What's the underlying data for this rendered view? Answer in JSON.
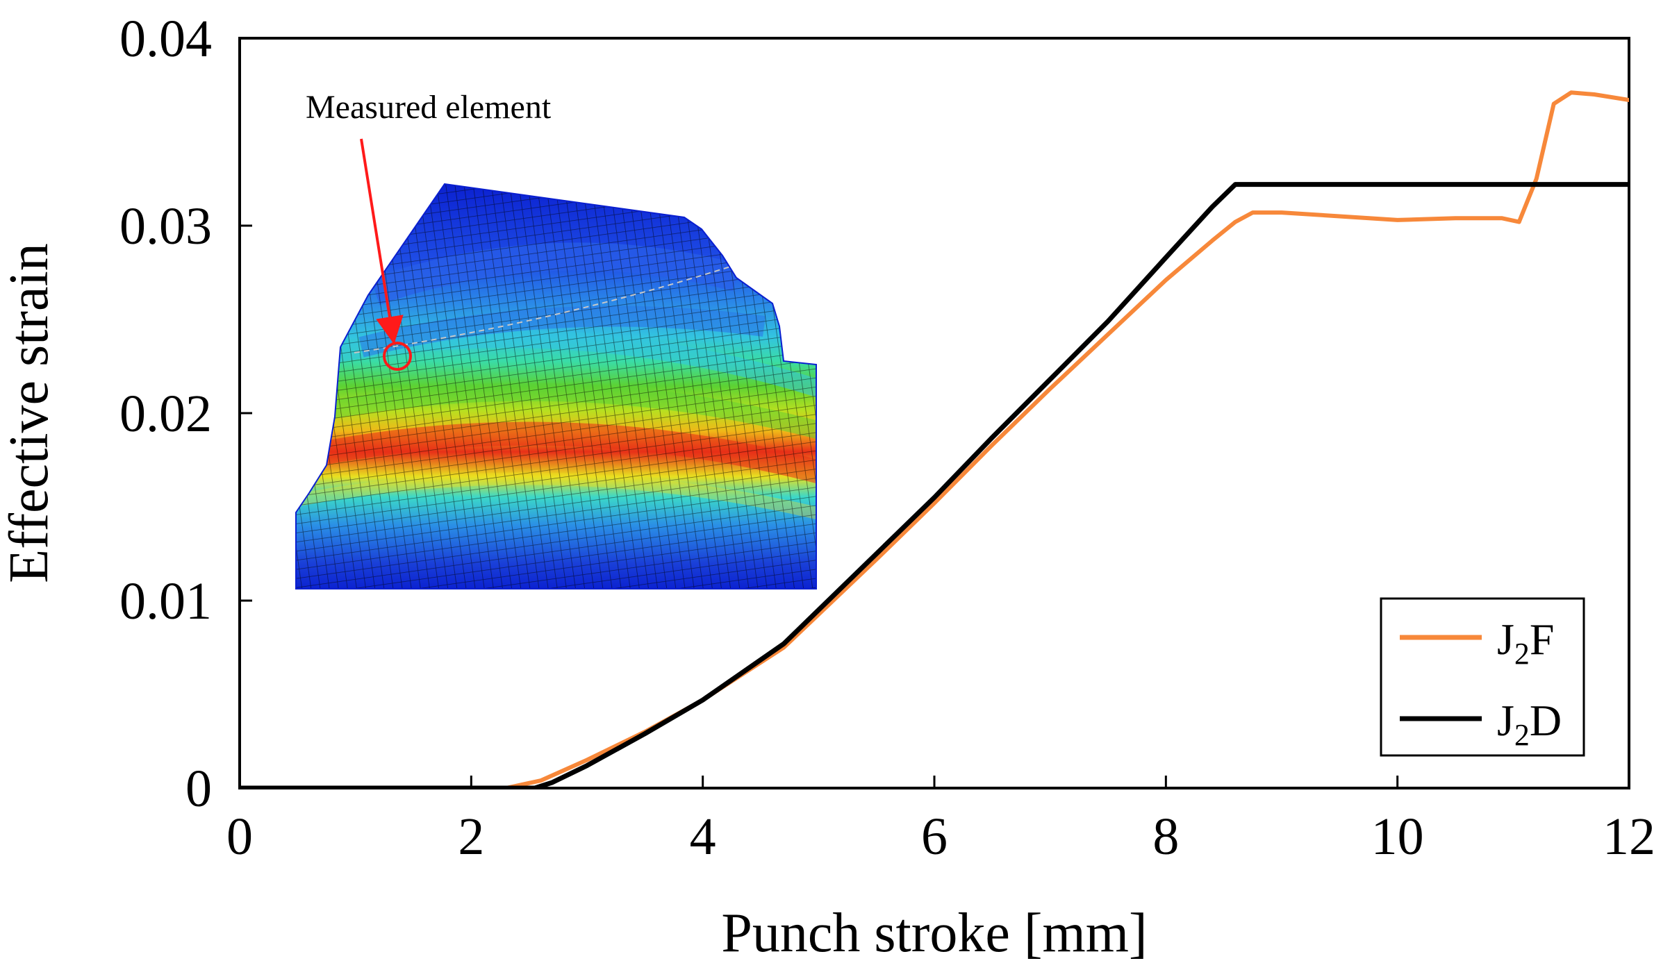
{
  "chart_data": {
    "type": "line",
    "title": "",
    "xlabel": "Punch stroke [mm]",
    "ylabel": "Effective strain",
    "xlim": [
      0,
      12
    ],
    "ylim": [
      0,
      0.04
    ],
    "xticks": [
      0,
      2,
      4,
      6,
      8,
      10,
      12
    ],
    "xtick_labels": [
      "0",
      "2",
      "4",
      "6",
      "8",
      "10",
      "12"
    ],
    "yticks": [
      0,
      0.01,
      0.02,
      0.03,
      0.04
    ],
    "ytick_labels": [
      "0",
      "0.01",
      "0.02",
      "0.03",
      "0.04"
    ],
    "grid": false,
    "legend_position": "bottom-right",
    "series": [
      {
        "name": "J2F",
        "name_main": "J",
        "name_sub": "2",
        "name_tail": "F",
        "color": "#f7883a",
        "x": [
          0,
          2.3,
          2.6,
          3.0,
          3.5,
          4.0,
          4.7,
          5.5,
          6.0,
          6.5,
          7.0,
          7.5,
          8.0,
          8.4,
          8.6,
          8.75,
          9.0,
          9.5,
          10.0,
          10.5,
          10.9,
          11.05,
          11.2,
          11.35,
          11.5,
          11.7,
          12.0
        ],
        "y": [
          0,
          0,
          0.0004,
          0.0015,
          0.003,
          0.0047,
          0.0075,
          0.0122,
          0.0152,
          0.0183,
          0.0213,
          0.0242,
          0.0271,
          0.0292,
          0.0302,
          0.0307,
          0.0307,
          0.0305,
          0.0303,
          0.0304,
          0.0304,
          0.0302,
          0.0325,
          0.0365,
          0.0371,
          0.037,
          0.0367
        ]
      },
      {
        "name": "J2D",
        "name_main": "J",
        "name_sub": "2",
        "name_tail": "D",
        "color": "#000000",
        "x": [
          0,
          2.55,
          2.7,
          3.0,
          3.5,
          4.0,
          4.7,
          5.5,
          6.0,
          6.5,
          7.0,
          7.5,
          8.0,
          8.4,
          8.6,
          8.7,
          9.0,
          10.0,
          11.0,
          12.0
        ],
        "y": [
          0,
          0,
          0.0003,
          0.0012,
          0.0029,
          0.0047,
          0.0077,
          0.0125,
          0.0155,
          0.0187,
          0.0218,
          0.0249,
          0.0283,
          0.031,
          0.0322,
          0.0322,
          0.0322,
          0.0322,
          0.0322,
          0.0322
        ]
      }
    ],
    "annotations": [
      {
        "text": "Measured element"
      }
    ],
    "inset": {
      "description_name": "fe-mesh-contour",
      "palette": [
        "#0a1fd0",
        "#1f55e8",
        "#2b8ae8",
        "#33c4e0",
        "#3adca6",
        "#5cd233",
        "#b8e020",
        "#f0e020",
        "#f8a018",
        "#e83018",
        "#d01010"
      ]
    }
  }
}
